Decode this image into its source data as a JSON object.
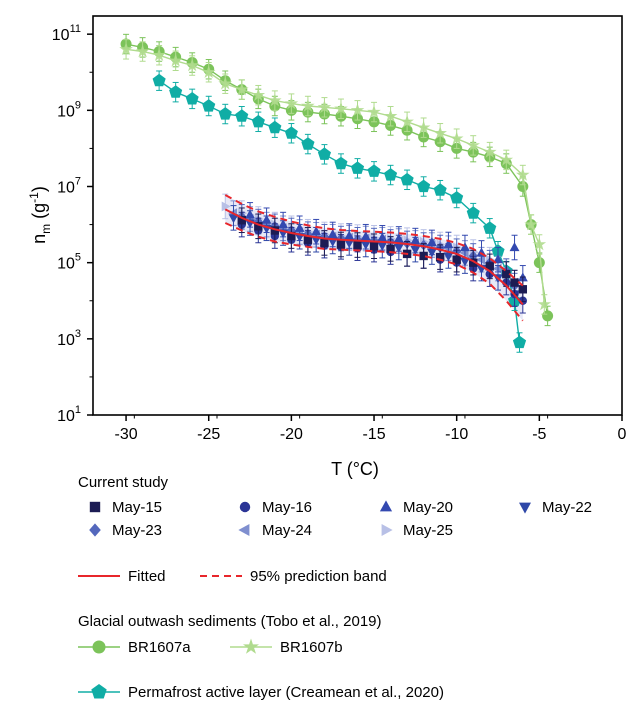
{
  "chart_data": {
    "type": "scatter",
    "x_axis": {
      "label": "T (°C)",
      "ticks": [
        -30,
        -25,
        -20,
        -15,
        -10,
        -5,
        0
      ],
      "tick_labels": [
        "-30",
        "-25",
        "-20",
        "-15",
        "-10",
        "-5",
        "0"
      ],
      "lim": [
        -32,
        0
      ]
    },
    "y_axis": {
      "label_main": "n",
      "label_sub": "m",
      "label_unit": " (g",
      "label_sup": "-1",
      "label_close": ")",
      "scale": "log",
      "lim": [
        10,
        300000000000
      ],
      "ticks": [
        10,
        1000,
        100000,
        10000000,
        1000000000,
        100000000000
      ],
      "tick_base": "10",
      "tick_exponents": [
        "1",
        "3",
        "5",
        "7",
        "9",
        "11"
      ]
    },
    "grid": false,
    "legend": {
      "current_study_title": "Current study",
      "glacial_title": "Glacial outwash sediments (Tobo et al., 2019)"
    },
    "colors": {
      "may15": "#1c1c54",
      "may16": "#2b3596",
      "may20": "#3349b0",
      "may22": "#2f48a8",
      "may23": "#5468bd",
      "may24": "#7f8fcf",
      "may25": "#b8c0e6",
      "fitted": "#e8262b",
      "br1607a": "#7cc35a",
      "br1607b": "#b0db8e",
      "permafrost": "#10ada5"
    },
    "series": [
      {
        "name": "May-15",
        "key": "may15",
        "marker": "square",
        "x": [
          -23,
          -22,
          -21,
          -20,
          -19,
          -18,
          -17,
          -16,
          -15,
          -14,
          -13,
          -12,
          -11,
          -10,
          -9,
          -8,
          -7,
          -6.5,
          -6
        ],
        "y": [
          1300000,
          900000,
          700000,
          500000,
          400000,
          330000,
          300000,
          290000,
          270000,
          230000,
          170000,
          150000,
          140000,
          120000,
          100000,
          80000,
          50000,
          30000,
          20000
        ]
      },
      {
        "name": "May-16",
        "key": "may16",
        "marker": "circle",
        "x": [
          -23,
          -22,
          -21,
          -20,
          -19,
          -18,
          -17,
          -16,
          -15,
          -14,
          -13,
          -12,
          -11,
          -10,
          -9,
          -8,
          -7,
          -6.5,
          -6
        ],
        "y": [
          1000000,
          700000,
          500000,
          400000,
          330000,
          280000,
          260000,
          240000,
          220000,
          190000,
          170000,
          150000,
          120000,
          100000,
          70000,
          50000,
          30000,
          15000,
          10000
        ]
      },
      {
        "name": "May-20",
        "key": "may20",
        "marker": "triangle-up",
        "x": [
          -22.5,
          -21.5,
          -20.5,
          -19.5,
          -18.5,
          -17.5,
          -16.5,
          -15.5,
          -14.5,
          -13.5,
          -12.5,
          -11.5,
          -10.5,
          -9.5,
          -8.5,
          -7.5,
          -6.5,
          -6
        ],
        "y": [
          1800000,
          1300000,
          1000000,
          800000,
          650000,
          550000,
          500000,
          480000,
          450000,
          420000,
          380000,
          340000,
          300000,
          250000,
          180000,
          120000,
          250000,
          40000
        ]
      },
      {
        "name": "May-22",
        "key": "may22",
        "marker": "triangle-down",
        "x": [
          -23.5,
          -22.5,
          -21.5,
          -20.5,
          -19.5,
          -18.5,
          -17.5,
          -16.5,
          -15.5,
          -14.5,
          -13.5,
          -12.5,
          -11.5,
          -10.5,
          -9.5,
          -8.5,
          -7.5,
          -6.5
        ],
        "y": [
          1500000,
          1100000,
          800000,
          600000,
          480000,
          400000,
          360000,
          330000,
          300000,
          280000,
          250000,
          220000,
          190000,
          150000,
          110000,
          70000,
          40000,
          15000
        ]
      },
      {
        "name": "May-23",
        "key": "may23",
        "marker": "diamond",
        "x": [
          -23,
          -22,
          -21,
          -20,
          -19,
          -18,
          -17,
          -16,
          -15,
          -14,
          -13,
          -12,
          -11,
          -10,
          -9,
          -8,
          -7,
          -6.5
        ],
        "y": [
          1600000,
          1200000,
          900000,
          700000,
          560000,
          480000,
          430000,
          400000,
          380000,
          350000,
          320000,
          290000,
          250000,
          200000,
          150000,
          100000,
          60000,
          25000
        ]
      },
      {
        "name": "May-24",
        "key": "may24",
        "marker": "triangle-left",
        "x": [
          -23.5,
          -22.5,
          -21.5,
          -20.5,
          -19.5,
          -18.5,
          -17.5,
          -16.5,
          -15.5,
          -14.5,
          -13.5,
          -12.5,
          -11.5,
          -10.5,
          -9.5,
          -8.5,
          -7.5,
          -6.5
        ],
        "y": [
          2000000,
          1400000,
          1000000,
          800000,
          640000,
          540000,
          480000,
          450000,
          430000,
          400000,
          370000,
          330000,
          290000,
          240000,
          180000,
          120000,
          70000,
          30000
        ]
      },
      {
        "name": "May-25",
        "key": "may25",
        "marker": "triangle-right",
        "x": [
          -24,
          -23,
          -22,
          -21,
          -20,
          -19,
          -18,
          -17,
          -16,
          -15,
          -14,
          -13,
          -12,
          -11,
          -10,
          -9,
          -8,
          -7
        ],
        "y": [
          3000000,
          2000000,
          1400000,
          1000000,
          800000,
          650000,
          550000,
          500000,
          470000,
          450000,
          420000,
          390000,
          350000,
          300000,
          250000,
          190000,
          120000,
          60000
        ]
      },
      {
        "name": "BR1607a",
        "key": "br1607a",
        "marker": "circle",
        "x": [
          -30,
          -29,
          -28,
          -27,
          -26,
          -25,
          -24,
          -23,
          -22,
          -21,
          -20,
          -19,
          -18,
          -17,
          -16,
          -15,
          -14,
          -13,
          -12,
          -11,
          -10,
          -9,
          -8,
          -7,
          -6,
          -5.5,
          -5,
          -4.5
        ],
        "y": [
          55000000000,
          45000000000,
          35000000000,
          25000000000,
          18000000000,
          12000000000,
          6000000000,
          3500000000,
          2000000000,
          1300000000,
          1000000000,
          900000000,
          800000000,
          700000000,
          600000000,
          500000000,
          400000000,
          300000000,
          200000000,
          150000000,
          100000000,
          80000000,
          60000000,
          40000000,
          10000000,
          1000000,
          100000,
          4000
        ]
      },
      {
        "name": "BR1607b",
        "key": "br1607b",
        "marker": "star",
        "x": [
          -30,
          -29,
          -28,
          -27,
          -26,
          -25,
          -24,
          -23,
          -22,
          -21,
          -20,
          -19,
          -18,
          -17,
          -16,
          -15,
          -14,
          -13,
          -12,
          -11,
          -10,
          -9,
          -8,
          -7,
          -6,
          -5.5,
          -5,
          -4.7
        ],
        "y": [
          40000000000,
          35000000000,
          28000000000,
          20000000000,
          15000000000,
          10000000000,
          5000000000,
          3500000000,
          2500000000,
          1800000000,
          1500000000,
          1300000000,
          1200000000,
          1100000000,
          1000000000,
          900000000,
          700000000,
          500000000,
          350000000,
          250000000,
          180000000,
          120000000,
          80000000,
          50000000,
          20000000,
          1000000,
          300000,
          8000
        ]
      },
      {
        "name": "Permafrost active layer (Creamean et al., 2020)",
        "key": "permafrost",
        "marker": "pentagon",
        "x": [
          -28,
          -27,
          -26,
          -25,
          -24,
          -23,
          -22,
          -21,
          -20,
          -19,
          -18,
          -17,
          -16,
          -15,
          -14,
          -13,
          -12,
          -11,
          -10,
          -9,
          -8,
          -7.5,
          -7,
          -6.5,
          -6.2
        ],
        "y": [
          6000000000,
          3000000000,
          2000000000,
          1300000000,
          800000000,
          700000000,
          500000000,
          350000000,
          250000000,
          130000000,
          70000000,
          40000000,
          30000000,
          25000000,
          20000000,
          15000000,
          10000000,
          8000000,
          5000000,
          2000000,
          800000,
          200000,
          60000,
          10000,
          800
        ]
      }
    ],
    "fitted": {
      "name": "Fitted",
      "x": [
        -24,
        -23,
        -22,
        -21,
        -20,
        -19,
        -18,
        -17,
        -16,
        -15,
        -14,
        -13,
        -12,
        -11,
        -10,
        -9,
        -8,
        -7,
        -6
      ],
      "y": [
        2500000,
        1500000,
        1000000,
        750000,
        600000,
        500000,
        430000,
        400000,
        380000,
        360000,
        340000,
        310000,
        270000,
        220000,
        170000,
        110000,
        60000,
        25000,
        8000
      ]
    },
    "prediction_band": {
      "name": "95% prediction band",
      "x": [
        -24,
        -23,
        -22,
        -21,
        -20,
        -19,
        -18,
        -17,
        -16,
        -15,
        -14,
        -13,
        -12,
        -11,
        -10,
        -9,
        -8,
        -7,
        -6
      ],
      "upper": [
        6000000,
        3500000,
        2200000,
        1600000,
        1200000,
        950000,
        800000,
        720000,
        680000,
        650000,
        620000,
        570000,
        500000,
        420000,
        330000,
        230000,
        130000,
        60000,
        25000
      ],
      "lower": [
        1100000,
        700000,
        480000,
        360000,
        300000,
        260000,
        230000,
        220000,
        210000,
        200000,
        190000,
        170000,
        150000,
        120000,
        90000,
        55000,
        28000,
        10000,
        3000
      ]
    }
  }
}
